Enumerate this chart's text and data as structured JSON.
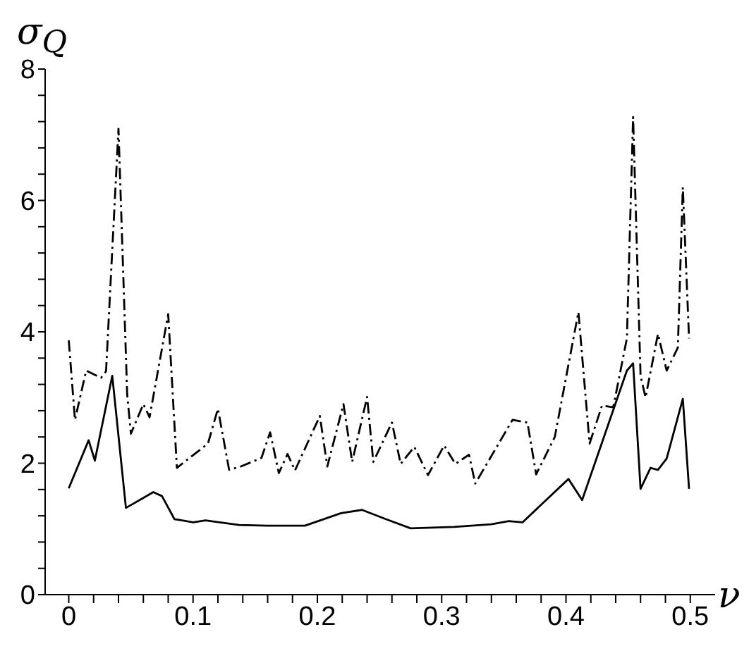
{
  "chart_data": {
    "type": "line",
    "xlabel": "ν",
    "ylabel": "σ$_{Q}$",
    "xlim": [
      -0.019,
      0.52
    ],
    "ylim": [
      0,
      8
    ],
    "xticks": [
      0,
      {
        "value": 0.02,
        "label": null
      },
      {
        "value": 0.04,
        "label": null
      },
      {
        "value": 0.06,
        "label": null
      },
      {
        "value": 0.08,
        "label": null
      },
      0.1,
      {
        "value": 0.12,
        "label": null
      },
      {
        "value": 0.14,
        "label": null
      },
      {
        "value": 0.16,
        "label": null
      },
      {
        "value": 0.18,
        "label": null
      },
      0.2,
      {
        "value": 0.22,
        "label": null
      },
      {
        "value": 0.24,
        "label": null
      },
      {
        "value": 0.26,
        "label": null
      },
      {
        "value": 0.28,
        "label": null
      },
      0.3,
      {
        "value": 0.32,
        "label": null
      },
      {
        "value": 0.34,
        "label": null
      },
      {
        "value": 0.36,
        "label": null
      },
      {
        "value": 0.38,
        "label": null
      },
      0.4,
      {
        "value": 0.42,
        "label": null
      },
      {
        "value": 0.44,
        "label": null
      },
      {
        "value": 0.46,
        "label": null
      },
      {
        "value": 0.48,
        "label": null
      },
      0.5
    ],
    "yticks": [
      0,
      {
        "value": 0.4,
        "label": null
      },
      {
        "value": 0.8,
        "label": null
      },
      {
        "value": 1.2,
        "label": null
      },
      {
        "value": 1.6,
        "label": null
      },
      2,
      {
        "value": 2.4,
        "label": null
      },
      {
        "value": 2.8,
        "label": null
      },
      {
        "value": 3.2,
        "label": null
      },
      {
        "value": 3.6,
        "label": null
      },
      4,
      {
        "value": 4.4,
        "label": null
      },
      {
        "value": 4.8,
        "label": null
      },
      {
        "value": 5.2,
        "label": null
      },
      {
        "value": 5.6,
        "label": null
      },
      6,
      {
        "value": 6.4,
        "label": null
      },
      {
        "value": 6.8,
        "label": null
      },
      {
        "value": 7.2,
        "label": null
      },
      {
        "value": 7.6,
        "label": null
      },
      8
    ],
    "grid": false,
    "legend": false,
    "marker": "none",
    "series": [
      {
        "color": "#000000",
        "line_style": "solid",
        "x": [
          0,
          0.016,
          0.021,
          0.035,
          0.046,
          0.058,
          0.068,
          0.075,
          0.085,
          0.1,
          0.11,
          0.137,
          0.16,
          0.19,
          0.219,
          0.236,
          0.255,
          0.275,
          0.31,
          0.34,
          0.354,
          0.365,
          0.402,
          0.413,
          0.449,
          0.454,
          0.46,
          0.468,
          0.474,
          0.481,
          0.494,
          0.499
        ],
        "values": [
          1.62,
          2.35,
          2.04,
          3.33,
          1.32,
          1.45,
          1.56,
          1.5,
          1.15,
          1.1,
          1.13,
          1.06,
          1.05,
          1.05,
          1.24,
          1.29,
          1.15,
          1.01,
          1.03,
          1.07,
          1.12,
          1.1,
          1.76,
          1.44,
          3.41,
          3.52,
          1.61,
          1.93,
          1.9,
          2.07,
          2.98,
          1.61
        ]
      },
      {
        "color": "#000000",
        "line_style": "dashed",
        "x": [
          0,
          0.005,
          0.014,
          0.026,
          0.03,
          0.04,
          0.047,
          0.05,
          0.06,
          0.065,
          0.08,
          0.087,
          0.112,
          0.12,
          0.129,
          0.137,
          0.155,
          0.162,
          0.169,
          0.176,
          0.182,
          0.202,
          0.208,
          0.221,
          0.228,
          0.24,
          0.245,
          0.26,
          0.267,
          0.278,
          0.289,
          0.302,
          0.311,
          0.322,
          0.327,
          0.357,
          0.369,
          0.376,
          0.391,
          0.41,
          0.419,
          0.429,
          0.438,
          0.449,
          0.454,
          0.46,
          0.464,
          0.474,
          0.481,
          0.49,
          0.494,
          0.499
        ],
        "values": [
          3.87,
          2.66,
          3.41,
          3.3,
          3.4,
          7.09,
          3.05,
          2.45,
          2.9,
          2.7,
          4.27,
          1.93,
          2.3,
          2.83,
          1.9,
          1.94,
          2.08,
          2.47,
          1.85,
          2.14,
          1.89,
          2.72,
          1.95,
          2.9,
          2.02,
          3.01,
          2.02,
          2.62,
          1.99,
          2.25,
          1.82,
          2.27,
          1.99,
          2.13,
          1.69,
          2.66,
          2.62,
          1.83,
          2.4,
          4.3,
          2.3,
          2.88,
          2.85,
          3.9,
          7.27,
          3.33,
          3.0,
          3.97,
          3.41,
          3.76,
          6.2,
          3.9
        ]
      }
    ]
  }
}
